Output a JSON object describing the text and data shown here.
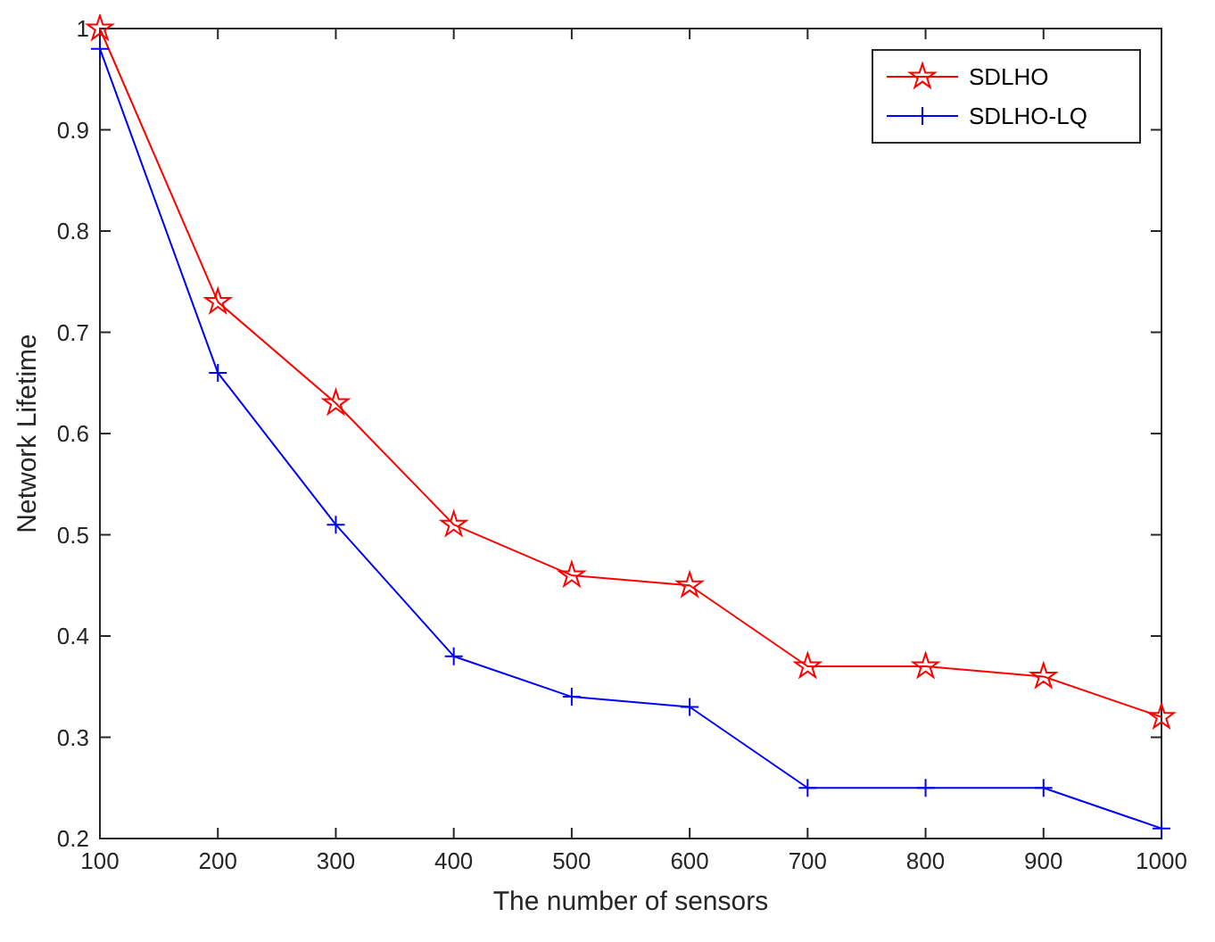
{
  "chart_data": {
    "type": "line",
    "xlabel": "The number of sensors",
    "ylabel": "Network Lifetime",
    "x": [
      100,
      200,
      300,
      400,
      500,
      600,
      700,
      800,
      900,
      1000
    ],
    "series": [
      {
        "name": "SDLHO",
        "color": "#ff0000",
        "marker": "star",
        "values": [
          1.0,
          0.73,
          0.63,
          0.51,
          0.46,
          0.45,
          0.37,
          0.37,
          0.36,
          0.32
        ]
      },
      {
        "name": "SDLHO-LQ",
        "color": "#0000ff",
        "marker": "cross",
        "values": [
          0.98,
          0.66,
          0.51,
          0.38,
          0.34,
          0.33,
          0.25,
          0.25,
          0.25,
          0.21
        ]
      }
    ],
    "xlim": [
      100,
      1000
    ],
    "xticks": [
      100,
      200,
      300,
      400,
      500,
      600,
      700,
      800,
      900,
      1000
    ],
    "ylim": [
      0.2,
      1
    ],
    "yticks": [
      0.2,
      0.3,
      0.4,
      0.5,
      0.6,
      0.7,
      0.8,
      0.9,
      {
        "value": 1,
        "label": "1"
      }
    ],
    "legend": "top right",
    "line_style": "solid"
  }
}
